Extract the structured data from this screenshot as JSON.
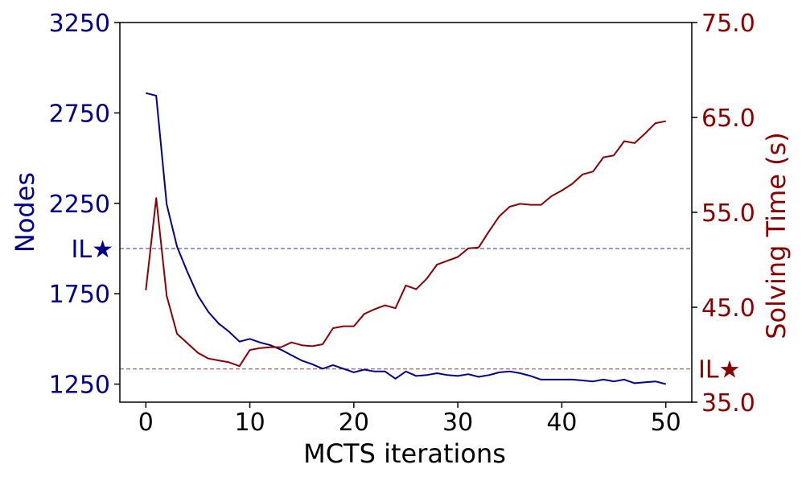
{
  "chart_data": {
    "type": "line",
    "xlabel": "MCTS iterations",
    "ylabel": "Nodes",
    "ylabel_right": "Solving Time (s)",
    "xlim": [
      -2.5,
      52.5
    ],
    "ylim": [
      1150,
      3250
    ],
    "ylim_right": [
      35.0,
      75.0
    ],
    "x_ticks": [
      "0",
      "10",
      "20",
      "30",
      "40",
      "50"
    ],
    "y_ticks": [
      "1250",
      "1750",
      "2250",
      "2750",
      "3250"
    ],
    "y_ticks_right": [
      "35.0",
      "45.0",
      "55.0",
      "65.0",
      "75.0"
    ],
    "grid": false,
    "x": [
      0,
      1,
      2,
      3,
      4,
      5,
      6,
      7,
      8,
      9,
      10,
      11,
      12,
      13,
      14,
      15,
      16,
      17,
      18,
      19,
      20,
      21,
      22,
      23,
      24,
      25,
      26,
      27,
      28,
      29,
      30,
      31,
      32,
      33,
      34,
      35,
      36,
      37,
      38,
      39,
      40,
      41,
      42,
      43,
      44,
      45,
      46,
      47,
      48,
      49,
      50
    ],
    "series": [
      {
        "axis": "left",
        "color": "#00008b",
        "values": [
          2860,
          2845,
          2245,
          2010,
          1870,
          1740,
          1650,
          1585,
          1540,
          1485,
          1500,
          1480,
          1465,
          1440,
          1410,
          1380,
          1360,
          1335,
          1355,
          1335,
          1315,
          1330,
          1320,
          1320,
          1280,
          1320,
          1295,
          1300,
          1310,
          1300,
          1295,
          1305,
          1290,
          1300,
          1315,
          1320,
          1310,
          1295,
          1275,
          1275,
          1275,
          1275,
          1270,
          1265,
          1275,
          1265,
          1275,
          1255,
          1260,
          1265,
          1250
        ]
      },
      {
        "axis": "right",
        "color": "#8b0000",
        "values": [
          46.8,
          56.5,
          46.2,
          42.2,
          41.2,
          40.2,
          39.6,
          39.4,
          39.2,
          38.8,
          40.5,
          40.7,
          40.8,
          40.8,
          41.3,
          41.0,
          40.9,
          41.1,
          42.8,
          43.0,
          43.0,
          44.3,
          44.8,
          45.2,
          44.9,
          47.3,
          46.9,
          48.0,
          49.5,
          49.9,
          50.3,
          51.2,
          51.3,
          53.0,
          54.6,
          55.6,
          55.9,
          55.8,
          55.8,
          56.7,
          57.3,
          58.0,
          59.0,
          59.3,
          60.8,
          61.0,
          62.5,
          62.3,
          63.3,
          64.4,
          64.6
        ]
      }
    ],
    "reference_lines": [
      {
        "axis": "left",
        "label": "IL★",
        "value": 2000,
        "color": "#00008b"
      },
      {
        "axis": "right",
        "label": "IL★",
        "value": 38.5,
        "color": "#8b0000"
      }
    ]
  }
}
